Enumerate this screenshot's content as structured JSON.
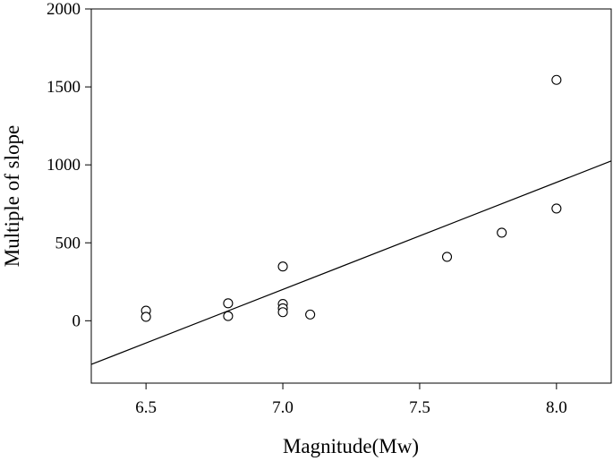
{
  "chart_data": {
    "type": "scatter",
    "title": "",
    "xlabel": "Magnitude(Mw)",
    "ylabel": "Multiple of slope",
    "xlim": [
      6.3,
      8.2
    ],
    "ylim": [
      -400,
      2000
    ],
    "x_ticks": [
      "6.5",
      "7.0",
      "7.5",
      "8.0"
    ],
    "y_ticks": [
      "0",
      "500",
      "1000",
      "1500",
      "2000"
    ],
    "grid": false,
    "series": [
      {
        "points": [
          {
            "x": 6.5,
            "y": 65
          },
          {
            "x": 6.5,
            "y": 25
          },
          {
            "x": 6.8,
            "y": 112
          },
          {
            "x": 6.8,
            "y": 30
          },
          {
            "x": 7.0,
            "y": 348
          },
          {
            "x": 7.0,
            "y": 108
          },
          {
            "x": 7.0,
            "y": 80
          },
          {
            "x": 7.0,
            "y": 55
          },
          {
            "x": 7.1,
            "y": 40
          },
          {
            "x": 7.6,
            "y": 410
          },
          {
            "x": 7.8,
            "y": 565
          },
          {
            "x": 8.0,
            "y": 1545
          },
          {
            "x": 8.0,
            "y": 720
          }
        ]
      }
    ],
    "fit_line": {
      "x": [
        6.3,
        8.2
      ],
      "y": [
        -280,
        1025
      ]
    }
  }
}
